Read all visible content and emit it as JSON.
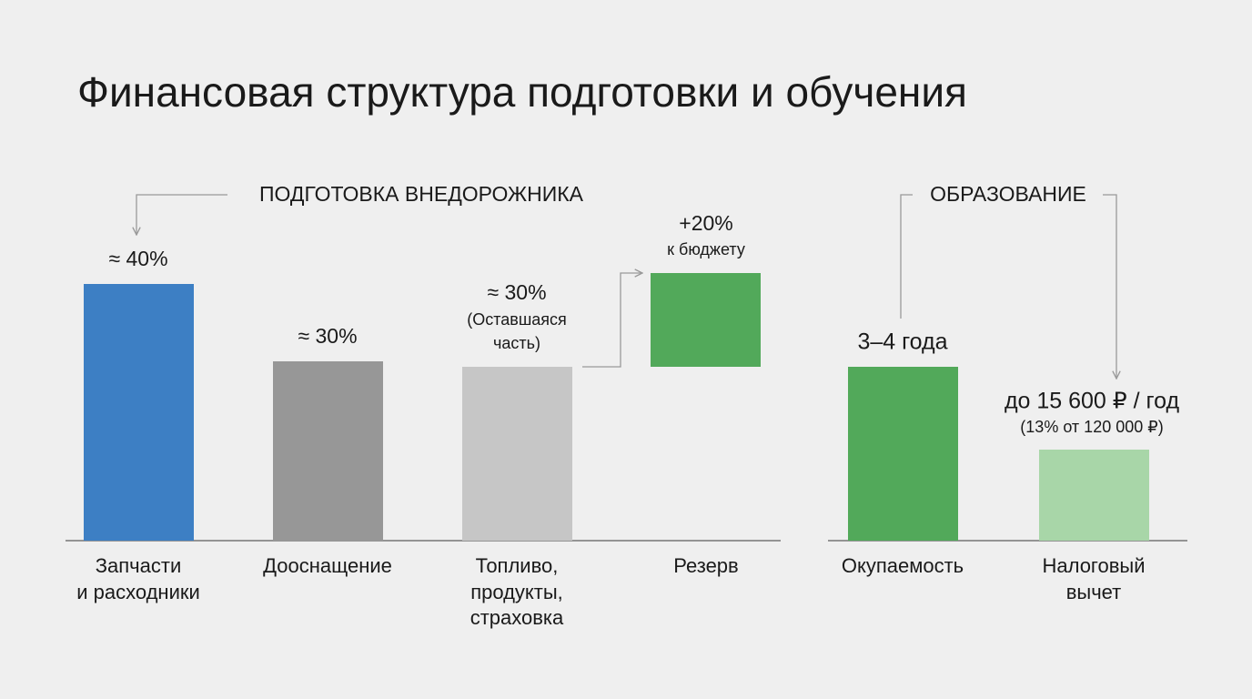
{
  "title": "Финансовая структура подготовки и обучения",
  "sections": [
    {
      "heading": "ПОДГОТОВКА ВНЕДОРОЖНИКА",
      "bars": [
        {
          "label": [
            "≈ 40%"
          ],
          "category": [
            "Запчасти",
            "и расходники"
          ]
        },
        {
          "label": [
            "≈ 30%"
          ],
          "category": [
            "Дооснащение"
          ]
        },
        {
          "label": [
            "≈ 30%",
            "(Оставшаяся",
            "часть)"
          ],
          "category": [
            "Топливо,",
            "продукты,",
            "страховка"
          ]
        },
        {
          "label": [
            "+20%",
            "к бюджету"
          ],
          "category": [
            "Резерв"
          ]
        }
      ]
    },
    {
      "heading": "ОБРАЗОВАНИЕ",
      "bars": [
        {
          "label": [
            "3–4 года"
          ],
          "category": [
            "Окупаемость"
          ]
        },
        {
          "label": [
            "до 15 600 ₽ / год",
            "(13% от 120 000 ₽)"
          ],
          "category": [
            "Налоговый",
            "вычет"
          ]
        }
      ]
    }
  ]
}
